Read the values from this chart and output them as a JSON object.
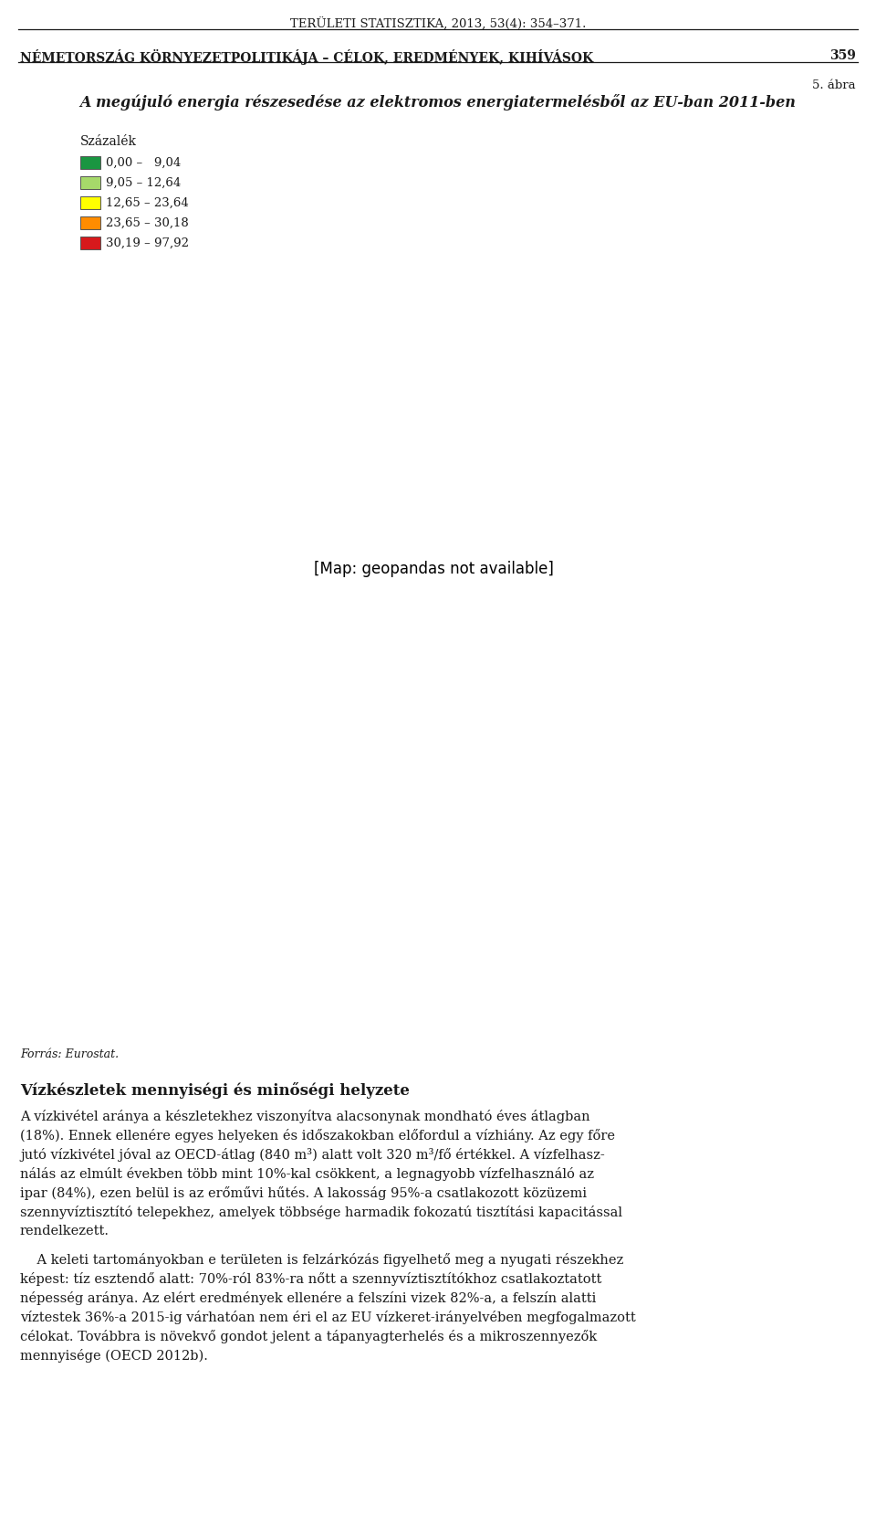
{
  "header_text": "TERÜLETI STATISZTIKA, 2013, 53(4): 354–371.",
  "left_header": "NÉMETORSZÁG KÖRNYEZETPOLITIKÁJA – CÉLOK, EREDMÉNYEK, KIHÍVÁSOK",
  "right_header": "359",
  "figure_number": "5. ábra",
  "figure_title": "A megújuló energia részesedése az elektromos energiatermelésből az EU-ban 2011-ben",
  "legend_title": "Százalék",
  "legend_items": [
    {
      "label": "0,00 –   9,04",
      "color": "#1a9641"
    },
    {
      "label": "9,05 – 12,64",
      "color": "#a6d96a"
    },
    {
      "label": "12,65 – 23,64",
      "color": "#ffff00"
    },
    {
      "label": "23,65 – 30,18",
      "color": "#ff8c00"
    },
    {
      "label": "30,19 – 97,92",
      "color": "#d7191c"
    }
  ],
  "country_colors": {
    "Norway": "#d7191c",
    "Sweden": "#d7191c",
    "Finland": "#ff8c00",
    "Denmark": "#d7191c",
    "Iceland": "#d7191c",
    "United Kingdom": "#a6d96a",
    "Ireland": "#ff8c00",
    "France": "#ffff00",
    "Spain": "#ff8c00",
    "Portugal": "#d7191c",
    "Germany": "#ffff00",
    "Netherlands": "#ffff00",
    "Belgium": "#ffff00",
    "Luxembourg": "#ffff00",
    "Switzerland": "#ffff00",
    "Austria": "#d7191c",
    "Italy": "#ffff00",
    "Poland": "#1a9641",
    "Czech Republic": "#1a9641",
    "Czechia": "#1a9641",
    "Slovakia": "#ffff00",
    "Hungary": "#ffff00",
    "Romania": "#ff8c00",
    "Bulgaria": "#1a9641",
    "Greece": "#1a9641",
    "Croatia": "#ff8c00",
    "Slovenia": "#ff8c00",
    "Serbia": "#ff8c00",
    "Bosnia and Herzegovina": "#ff8c00",
    "Montenegro": "#ff8c00",
    "Albania": "#ff8c00",
    "North Macedonia": "#ff8c00",
    "Kosovo": "#ff8c00",
    "Moldova": "#a6d96a",
    "Estonia": "#a6d96a",
    "Latvia": "#a6d96a",
    "Lithuania": "#a6d96a",
    "Belarus": "#ffffff",
    "Ukraine": "#ffffff",
    "Russia": "#ffffff",
    "Turkey": "#ff8c00",
    "Cyprus": "#1a9641",
    "Malta": "#ffff00",
    "Macedonia": "#ff8c00",
    "Kosovo*": "#ff8c00"
  },
  "non_eu_color": "#ffffff",
  "border_color": "#333333",
  "ocean_color": "#ffffff",
  "forrás": "Forrás: Eurostat.",
  "section_title": "Vízkészletek mennyiségi és minőségi helyzete",
  "body_paragraph1": "A vízkivétel aránya a készletekhez viszonyítva alacsonynak mondható éves átlagban (18%). Ennek ellenére egyes helyeken és időszakokban előfordul a vízhiány. Az egy főre jutó vízkivétel jóval az OECD-átlag (840 m³) alatt volt 320 m³/fő értékkel. A vízfelhasz-\nnálás az elmúlt években több mint 10%-kal csökkent, a legnagyobb vízfelhasználó az ipar (84%), ezen belül is az erőművi hűtés. A lakosság 95%-a csatlakozott közüzemi szennyvíztisztító telepekhez, amelyek többsége harmadik fokozatú tisztítási kapacitással rendelkezett.",
  "body_paragraph2": "A keleti tartományokban e területen is felzárkózás figyelhető meg a nyugati részekhez képest: tíz esztendő alatt: 70%-ról 83%-ra nőtt a szennyvíztisztítókhoz csatlakoztatott népesség aránya. Az elért eredmények ellenére a felszíni vizek 82%-a, a felszín alatti víztestek 36%-a 2015-ig várhatóan nem éri el az EU vízkeret-irányelvében megfogalmazott célokat. Továbbra is növekvő gondot jelent a tápanyagterhelés és a mikroszennyezők mennyisége (OECD 2012b).",
  "background_color": "#ffffff",
  "text_color": "#1a1a1a"
}
